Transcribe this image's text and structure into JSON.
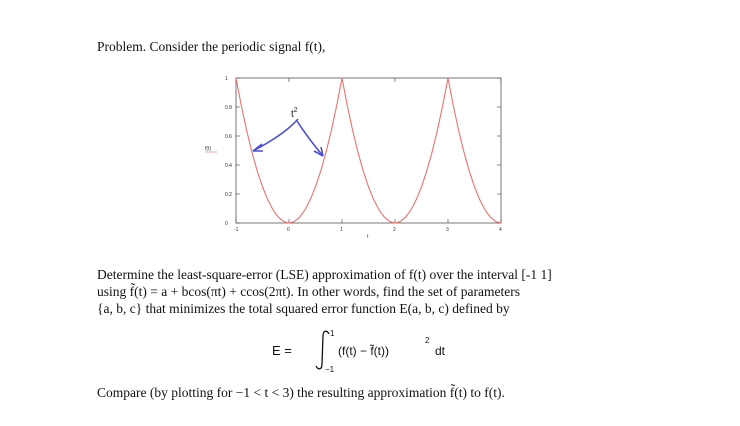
{
  "problem_intro": "Problem. Consider the periodic signal f(t),",
  "body_lines": [
    "Determine the least-square-error (LSE) approximation of f(t) over the interval [-1  1]",
    "using f̃(t) = a + bcos(πt) + ccos(2πt). In other words, find the set of parameters",
    "{a, b, c} that minimizes the total squared error function E(a, b, c) defined by"
  ],
  "closing_line": "Compare (by plotting for −1 < t < 3) the resulting approximation f̃(t) to f(t).",
  "equation": {
    "lhs": "E =",
    "lower_limit": "−1",
    "upper_limit": "1",
    "integrand": "(f(t) − f̃(t))",
    "exponent": "2",
    "differential": "dt"
  },
  "chart_data": {
    "type": "line",
    "x": [
      -1,
      -0.9,
      -0.8,
      -0.7,
      -0.6,
      -0.5,
      -0.4,
      -0.3,
      -0.2,
      -0.1,
      0,
      0.1,
      0.2,
      0.3,
      0.4,
      0.5,
      0.6,
      0.7,
      0.8,
      0.9,
      1,
      1.1,
      1.2,
      1.3,
      1.4,
      1.5,
      1.6,
      1.7,
      1.8,
      1.9,
      2,
      2.1,
      2.2,
      2.3,
      2.4,
      2.5,
      2.6,
      2.7,
      2.8,
      2.9,
      3,
      3.1,
      3.2,
      3.3,
      3.4,
      3.5,
      3.6,
      3.7,
      3.8,
      3.9,
      4
    ],
    "y": [
      1,
      0.81,
      0.64,
      0.49,
      0.36,
      0.25,
      0.16,
      0.09,
      0.04,
      0.01,
      0,
      0.01,
      0.04,
      0.09,
      0.16,
      0.25,
      0.36,
      0.49,
      0.64,
      0.81,
      1,
      0.81,
      0.64,
      0.49,
      0.36,
      0.25,
      0.16,
      0.09,
      0.04,
      0.01,
      0,
      0.01,
      0.04,
      0.09,
      0.16,
      0.25,
      0.36,
      0.49,
      0.64,
      0.81,
      1,
      0.81,
      0.64,
      0.49,
      0.36,
      0.25,
      0.16,
      0.09,
      0.04,
      0.01,
      0
    ],
    "xlim": [
      -1,
      4
    ],
    "ylim": [
      0,
      1
    ],
    "xticks": [
      "-1",
      "0",
      "1",
      "2",
      "3",
      "4"
    ],
    "yticks": [
      "0",
      "0.2",
      "0.4",
      "0.6",
      "0.8",
      "1"
    ],
    "xlabel": "t",
    "ylabel": "f(t)",
    "annotation_base": "t",
    "annotation_exp": "2",
    "line_color": "#e8736e",
    "arrow_color": "#4a4fd6"
  }
}
